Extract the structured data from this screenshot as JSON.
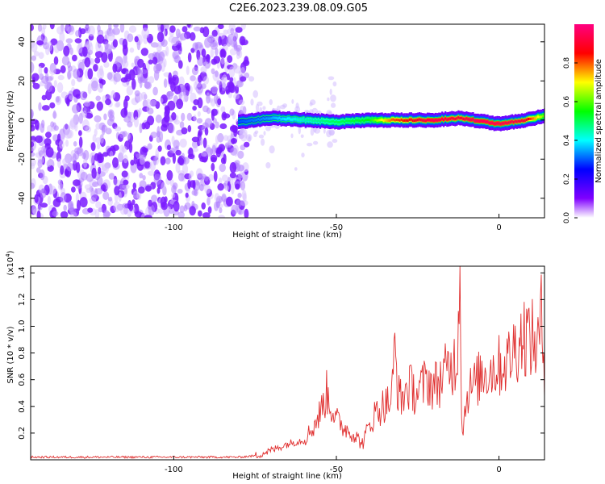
{
  "title": "C2E6.2023.239.08.09.G05",
  "chart_data": [
    {
      "type": "heatmap",
      "xlabel": "Height of straight line (km)",
      "ylabel": "Frequency (Hz)",
      "xlim": [
        -144,
        14
      ],
      "ylim": [
        -50,
        49
      ],
      "x_ticks": [
        -100,
        -50,
        0
      ],
      "y_ticks": [
        -40,
        -20,
        0,
        20,
        40
      ],
      "noise_region_x": [
        -144,
        -80
      ],
      "signal_track": {
        "x": [
          -80,
          -70,
          -60,
          -50,
          -40,
          -33,
          -20,
          -12,
          -8,
          0,
          8,
          14
        ],
        "frequency": [
          -1,
          1,
          0,
          -1,
          0,
          0,
          0,
          1,
          0,
          -2,
          0,
          2
        ],
        "normalized_amplitude": [
          0.3,
          0.35,
          0.45,
          0.5,
          0.55,
          0.8,
          0.95,
          0.9,
          0.95,
          0.95,
          0.9,
          0.6
        ]
      },
      "colorbar": {
        "label": "Normalized spectral amplitude",
        "ticks": [
          "0.0",
          "0.2",
          "0.4",
          "0.6",
          "0.8"
        ],
        "range": [
          0,
          1
        ]
      }
    },
    {
      "type": "line",
      "xlabel": "Height of straight line (km)",
      "ylabel": "SNR (10 * v/v)",
      "multiplier": "(x10",
      "multiplier_exp": "4",
      "xlim": [
        -144,
        14
      ],
      "ylim": [
        0,
        1.45
      ],
      "x_ticks": [
        -100,
        -50,
        0
      ],
      "y_ticks": [
        "0.2",
        "0.4",
        "0.6",
        "0.8",
        "1.0",
        "1.2",
        "1.4"
      ],
      "color": "#e03030",
      "x": [
        -144,
        -120,
        -100,
        -80,
        -75,
        -70,
        -65,
        -60,
        -57,
        -55,
        -53,
        -50,
        -48,
        -45,
        -42,
        -40,
        -38,
        -36,
        -33,
        -32,
        -31,
        -30,
        -28,
        -25,
        -22,
        -20,
        -18,
        -15,
        -13,
        -12,
        -11.5,
        -11,
        -10,
        -8,
        -5,
        0,
        3,
        5,
        8,
        10,
        12,
        13,
        14
      ],
      "y": [
        0.02,
        0.02,
        0.02,
        0.02,
        0.03,
        0.07,
        0.12,
        0.15,
        0.25,
        0.35,
        0.5,
        0.3,
        0.25,
        0.2,
        0.12,
        0.25,
        0.35,
        0.4,
        0.45,
        0.85,
        0.5,
        0.45,
        0.55,
        0.5,
        0.6,
        0.55,
        0.6,
        0.7,
        0.75,
        1.45,
        0.4,
        0.2,
        0.5,
        0.55,
        0.65,
        0.7,
        0.75,
        0.85,
        0.95,
        0.9,
        0.85,
        1.05,
        0.7
      ]
    }
  ]
}
